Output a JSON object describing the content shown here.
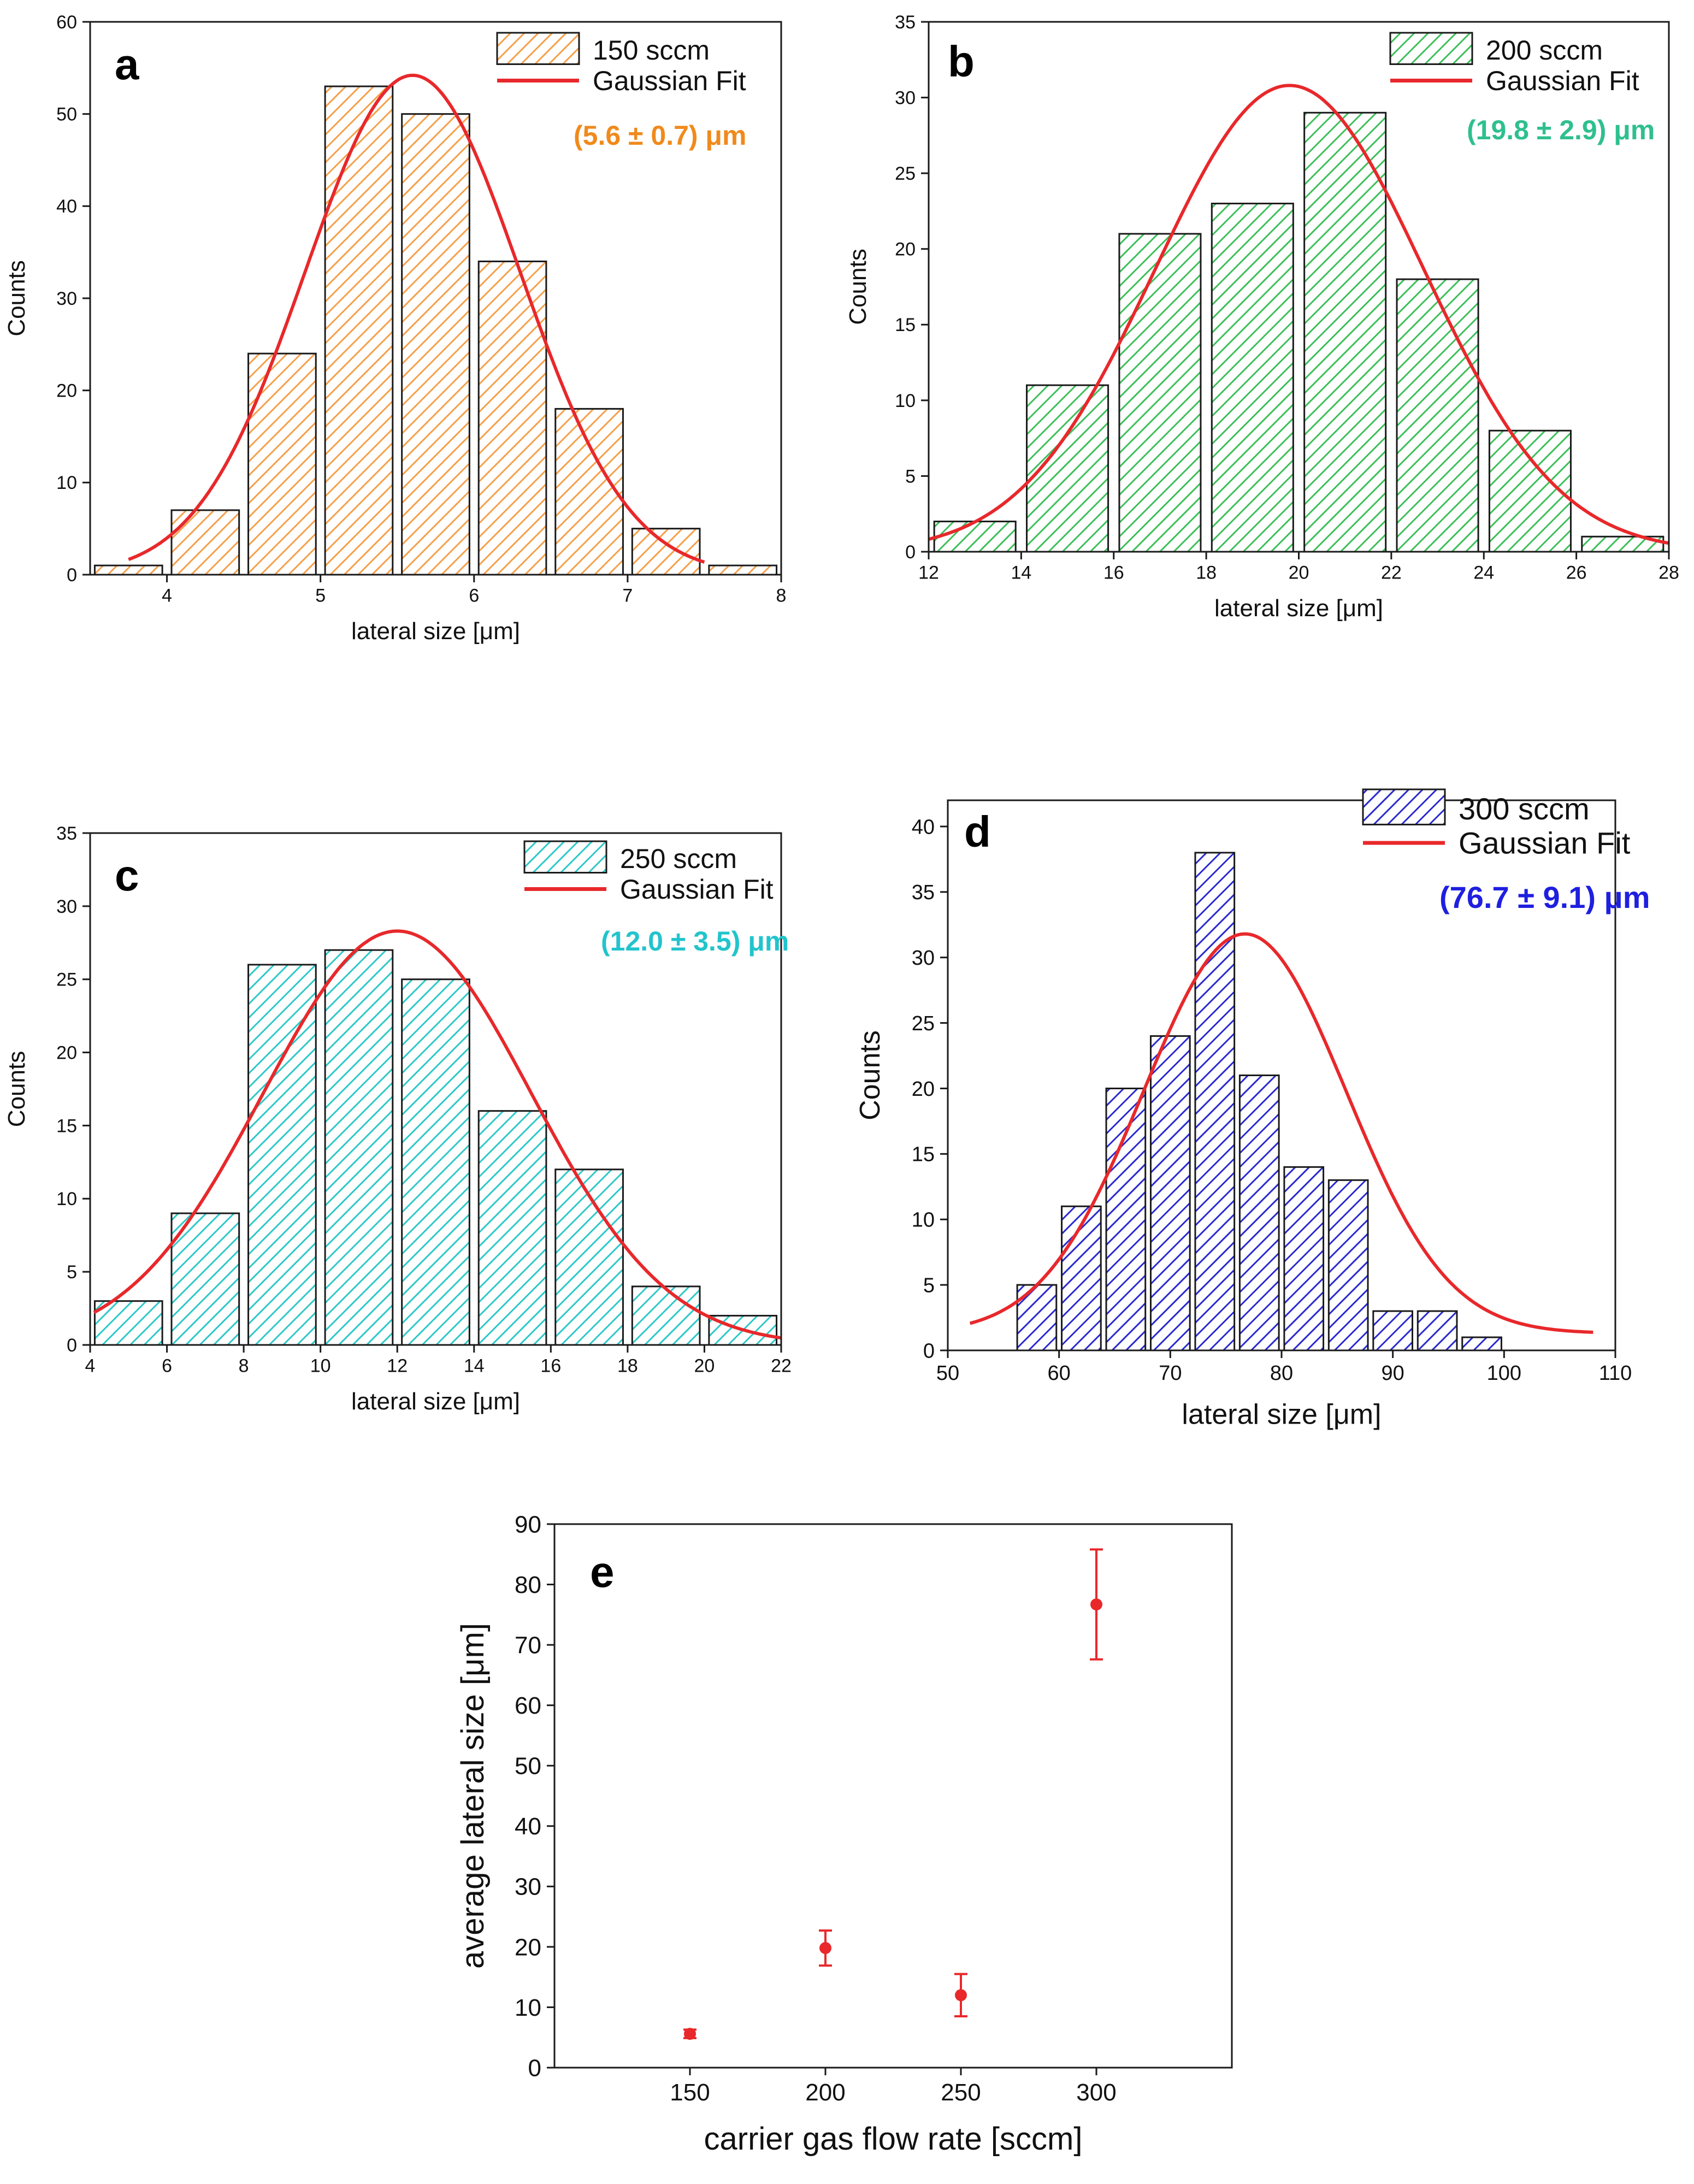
{
  "figure": {
    "panels": [
      "a",
      "b",
      "c",
      "d",
      "e"
    ]
  },
  "chart_data": [
    {
      "panel": "a",
      "type": "bar",
      "xlabel": "lateral size [μm]",
      "ylabel": "Counts",
      "xlim": [
        3.5,
        8
      ],
      "ylim": [
        0,
        60
      ],
      "xticks": [
        4,
        5,
        6,
        7,
        8
      ],
      "yticks": [
        0,
        10,
        20,
        30,
        40,
        50,
        60
      ],
      "bin_width": 0.5,
      "bins": [
        {
          "center": 3.75,
          "count": 1
        },
        {
          "center": 4.25,
          "count": 7
        },
        {
          "center": 4.75,
          "count": 24
        },
        {
          "center": 5.25,
          "count": 53
        },
        {
          "center": 5.75,
          "count": 50
        },
        {
          "center": 6.25,
          "count": 34
        },
        {
          "center": 6.75,
          "count": 18
        },
        {
          "center": 7.25,
          "count": 5
        },
        {
          "center": 7.75,
          "count": 1
        }
      ],
      "fit": {
        "mean": 5.6,
        "sigma": 0.7,
        "amplitude": 54.2,
        "x_range": [
          3.75,
          7.5
        ]
      },
      "color": "#f5a04a",
      "fit_color": "#e8282b",
      "legend": {
        "series_label": "150 sccm",
        "fit_label": "Gaussian Fit"
      },
      "annotation": "(5.6 ± 0.7) μm",
      "annotation_color": "#f08a1c",
      "legend_position": "top-right"
    },
    {
      "panel": "b",
      "type": "bar",
      "xlabel": "lateral size [μm]",
      "ylabel": "Counts",
      "xlim": [
        12,
        28
      ],
      "ylim": [
        0,
        35
      ],
      "xticks": [
        12,
        14,
        16,
        18,
        20,
        22,
        24,
        26,
        28
      ],
      "yticks": [
        0,
        5,
        10,
        15,
        20,
        25,
        30,
        35
      ],
      "bin_width": 2,
      "bins": [
        {
          "center": 13,
          "count": 2
        },
        {
          "center": 15,
          "count": 11
        },
        {
          "center": 17,
          "count": 21
        },
        {
          "center": 19,
          "count": 23
        },
        {
          "center": 21,
          "count": 29
        },
        {
          "center": 23,
          "count": 18
        },
        {
          "center": 25,
          "count": 8
        },
        {
          "center": 27,
          "count": 1
        }
      ],
      "fit": {
        "mean": 19.8,
        "sigma": 2.9,
        "amplitude": 30.8,
        "x_range": [
          12,
          28
        ]
      },
      "color": "#3dbf5a",
      "fit_color": "#e8282b",
      "legend": {
        "series_label": "200 sccm",
        "fit_label": "Gaussian Fit"
      },
      "annotation": "(19.8 ± 2.9) μm",
      "annotation_color": "#2fbf8f",
      "legend_position": "top-right"
    },
    {
      "panel": "c",
      "type": "bar",
      "xlabel": "lateral size [μm]",
      "ylabel": "Counts",
      "xlim": [
        4,
        22
      ],
      "ylim": [
        0,
        35
      ],
      "xticks": [
        4,
        6,
        8,
        10,
        12,
        14,
        16,
        18,
        20,
        22
      ],
      "yticks": [
        0,
        5,
        10,
        15,
        20,
        25,
        30,
        35
      ],
      "bin_width": 2,
      "bins": [
        {
          "center": 5,
          "count": 3
        },
        {
          "center": 7,
          "count": 9
        },
        {
          "center": 9,
          "count": 26
        },
        {
          "center": 11,
          "count": 27
        },
        {
          "center": 13,
          "count": 25
        },
        {
          "center": 15,
          "count": 16
        },
        {
          "center": 17,
          "count": 12
        },
        {
          "center": 19,
          "count": 4
        },
        {
          "center": 21,
          "count": 2
        }
      ],
      "fit": {
        "mean": 12.0,
        "sigma": 3.5,
        "amplitude": 28.3,
        "x_range": [
          4.1,
          22
        ]
      },
      "color": "#2ec8c8",
      "fit_color": "#e8282b",
      "legend": {
        "series_label": "250 sccm",
        "fit_label": "Gaussian Fit"
      },
      "annotation": "(12.0 ± 3.5) μm",
      "annotation_color": "#22c4cc",
      "legend_position": "top-right"
    },
    {
      "panel": "d",
      "type": "bar",
      "xlabel": "lateral size [μm]",
      "ylabel": "Counts",
      "xlim": [
        50,
        110
      ],
      "ylim": [
        0,
        42
      ],
      "xticks": [
        50,
        60,
        70,
        80,
        90,
        100,
        110
      ],
      "yticks": [
        0,
        5,
        10,
        15,
        20,
        25,
        30,
        35,
        40
      ],
      "bin_width": 4,
      "bins": [
        {
          "center": 58,
          "count": 5
        },
        {
          "center": 62,
          "count": 11
        },
        {
          "center": 66,
          "count": 20
        },
        {
          "center": 70,
          "count": 24
        },
        {
          "center": 74,
          "count": 38
        },
        {
          "center": 78,
          "count": 21
        },
        {
          "center": 82,
          "count": 14
        },
        {
          "center": 86,
          "count": 13
        },
        {
          "center": 90,
          "count": 3
        },
        {
          "center": 94,
          "count": 3
        },
        {
          "center": 98,
          "count": 1
        }
      ],
      "fit": {
        "mean": 76.7,
        "sigma": 9.1,
        "amplitude": 30.5,
        "offset": 1.3,
        "x_range": [
          52,
          108
        ]
      },
      "color": "#2a2ad0",
      "fit_color": "#e8282b",
      "legend": {
        "series_label": "300 sccm",
        "fit_label": "Gaussian Fit"
      },
      "annotation": "(76.7 ± 9.1) μm",
      "annotation_color": "#1f1fe0",
      "legend_position": "top-right"
    },
    {
      "panel": "e",
      "type": "scatter",
      "xlabel": "carrier gas flow rate [sccm]",
      "ylabel": "average lateral size [μm]",
      "xlim": [
        100,
        350
      ],
      "ylim": [
        0,
        90
      ],
      "xticks": [
        150,
        200,
        250,
        300
      ],
      "yticks": [
        0,
        10,
        20,
        30,
        40,
        50,
        60,
        70,
        80,
        90
      ],
      "points": [
        {
          "x": 150,
          "y": 5.6,
          "err": 0.7
        },
        {
          "x": 200,
          "y": 19.8,
          "err": 2.9
        },
        {
          "x": 250,
          "y": 12.0,
          "err": 3.5
        },
        {
          "x": 300,
          "y": 76.7,
          "err": 9.1
        }
      ],
      "color": "#e8282b"
    }
  ]
}
